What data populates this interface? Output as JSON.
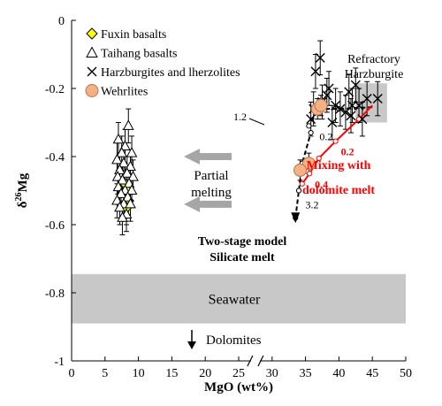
{
  "chart_data": {
    "type": "scatter",
    "title": "",
    "xlabel": "MgO (wt%)",
    "ylabel_main": "δ",
    "ylabel_sup": "26",
    "ylabel_tail": "Mg",
    "xlim": [
      0,
      50
    ],
    "ylim": [
      -1,
      0
    ],
    "x_axis_break": 27.5,
    "grid": false,
    "x_ticks": [
      {
        "value": 0,
        "label": "0"
      },
      {
        "value": 5,
        "label": "5"
      },
      {
        "value": 10,
        "label": "10"
      },
      {
        "value": 15,
        "label": "15"
      },
      {
        "value": 20,
        "label": "20"
      },
      {
        "value": 25,
        "label": "25"
      },
      {
        "value": 30,
        "label": "30"
      },
      {
        "value": 35,
        "label": "35"
      },
      {
        "value": 40,
        "label": "40"
      },
      {
        "value": 45,
        "label": "45"
      },
      {
        "value": 50,
        "label": "50"
      }
    ],
    "y_ticks": [
      {
        "value": 0,
        "label": "0"
      },
      {
        "value": -0.2,
        "label": "-0.2"
      },
      {
        "value": -0.4,
        "label": "-0.4"
      },
      {
        "value": -0.6,
        "label": "-0.6"
      },
      {
        "value": -0.8,
        "label": "-0.8"
      },
      {
        "value": -1,
        "label": "-1"
      }
    ],
    "legend": {
      "placement": "top-left",
      "entries": [
        {
          "name": "Fuxin basalts",
          "marker": "diamond",
          "color": "#ffff00"
        },
        {
          "name": "Taihang basalts",
          "marker": "triangle",
          "color": "#ffffff"
        },
        {
          "name": "Harzburgites and lherzolites",
          "marker": "cross",
          "color": "#000000"
        },
        {
          "name": "Wehrlites",
          "marker": "circle",
          "color": "#f4b183"
        }
      ]
    },
    "series": [
      {
        "name": "Fuxin basalts",
        "marker": "diamond",
        "points": [
          {
            "x": 8.0,
            "y": -0.48,
            "err": 0.05
          },
          {
            "x": 8.3,
            "y": -0.5,
            "err": 0.05
          },
          {
            "x": 8.5,
            "y": -0.53,
            "err": 0.05
          },
          {
            "x": 8.2,
            "y": -0.55,
            "err": 0.05
          }
        ]
      },
      {
        "name": "Taihang basalts",
        "marker": "triangle",
        "points": [
          {
            "x": 8.5,
            "y": -0.31,
            "err": 0.05
          },
          {
            "x": 7.0,
            "y": -0.35,
            "err": 0.05
          },
          {
            "x": 8.0,
            "y": -0.37,
            "err": 0.05
          },
          {
            "x": 7.5,
            "y": -0.39,
            "err": 0.05
          },
          {
            "x": 9.0,
            "y": -0.39,
            "err": 0.05
          },
          {
            "x": 6.8,
            "y": -0.41,
            "err": 0.05
          },
          {
            "x": 7.8,
            "y": -0.42,
            "err": 0.05
          },
          {
            "x": 8.8,
            "y": -0.43,
            "err": 0.05
          },
          {
            "x": 7.2,
            "y": -0.44,
            "err": 0.05
          },
          {
            "x": 8.3,
            "y": -0.45,
            "err": 0.05
          },
          {
            "x": 6.9,
            "y": -0.46,
            "err": 0.05
          },
          {
            "x": 9.2,
            "y": -0.46,
            "err": 0.05
          },
          {
            "x": 7.6,
            "y": -0.47,
            "err": 0.05
          },
          {
            "x": 8.6,
            "y": -0.48,
            "err": 0.05
          },
          {
            "x": 7.0,
            "y": -0.49,
            "err": 0.05
          },
          {
            "x": 8.0,
            "y": -0.5,
            "err": 0.05
          },
          {
            "x": 9.0,
            "y": -0.5,
            "err": 0.05
          },
          {
            "x": 7.4,
            "y": -0.51,
            "err": 0.05
          },
          {
            "x": 8.4,
            "y": -0.52,
            "err": 0.05
          },
          {
            "x": 6.8,
            "y": -0.53,
            "err": 0.05
          },
          {
            "x": 7.8,
            "y": -0.54,
            "err": 0.05
          },
          {
            "x": 8.8,
            "y": -0.54,
            "err": 0.05
          },
          {
            "x": 7.2,
            "y": -0.55,
            "err": 0.05
          },
          {
            "x": 8.2,
            "y": -0.57,
            "err": 0.05
          },
          {
            "x": 7.6,
            "y": -0.58,
            "err": 0.05
          }
        ]
      },
      {
        "name": "Harzburgites and lherzolites",
        "marker": "cross",
        "points": [
          {
            "x": 37.2,
            "y": -0.11,
            "err": 0.05
          },
          {
            "x": 36.5,
            "y": -0.15,
            "err": 0.05
          },
          {
            "x": 38.5,
            "y": -0.2,
            "err": 0.05
          },
          {
            "x": 38.2,
            "y": -0.22,
            "err": 0.05
          },
          {
            "x": 41.5,
            "y": -0.21,
            "err": 0.05
          },
          {
            "x": 42.5,
            "y": -0.19,
            "err": 0.05
          },
          {
            "x": 37.5,
            "y": -0.24,
            "err": 0.05
          },
          {
            "x": 39.5,
            "y": -0.25,
            "err": 0.05
          },
          {
            "x": 40.2,
            "y": -0.26,
            "err": 0.05
          },
          {
            "x": 41.0,
            "y": -0.27,
            "err": 0.05
          },
          {
            "x": 42.0,
            "y": -0.25,
            "err": 0.05
          },
          {
            "x": 43.0,
            "y": -0.25,
            "err": 0.05
          },
          {
            "x": 44.2,
            "y": -0.23,
            "err": 0.05
          },
          {
            "x": 45.8,
            "y": -0.23,
            "err": 0.05
          },
          {
            "x": 35.8,
            "y": -0.29,
            "err": 0.05
          },
          {
            "x": 36.2,
            "y": -0.26,
            "err": 0.05
          },
          {
            "x": 41.8,
            "y": -0.28,
            "err": 0.05
          },
          {
            "x": 39.0,
            "y": -0.3,
            "err": 0.05
          },
          {
            "x": 43.5,
            "y": -0.29,
            "err": 0.05
          }
        ]
      },
      {
        "name": "Wehrlites",
        "marker": "circle",
        "points": [
          {
            "x": 36.8,
            "y": -0.26,
            "err": 0.03
          },
          {
            "x": 37.3,
            "y": -0.25,
            "err": 0.03
          },
          {
            "x": 35.5,
            "y": -0.42,
            "err": 0.03
          },
          {
            "x": 34.2,
            "y": -0.44,
            "err": 0.03
          }
        ]
      }
    ],
    "models": [
      {
        "name": "Two-stage model Silicate melt",
        "color": "#000000",
        "points": [
          [
            45.0,
            -0.255
          ],
          [
            40.0,
            -0.26
          ],
          [
            37.0,
            -0.26
          ],
          [
            35.5,
            -0.31
          ],
          [
            35.8,
            -0.33
          ],
          [
            34.5,
            -0.42
          ],
          [
            34.0,
            -0.5
          ],
          [
            33.5,
            -0.58
          ]
        ],
        "tick_labels": [
          {
            "x": 36.3,
            "y": -0.31,
            "label": "0.2"
          },
          {
            "x": 34.2,
            "y": -0.51,
            "label": "3.2"
          }
        ],
        "side_label": "1.2"
      },
      {
        "name": "Mixing with dolomite melt",
        "color": "#ff0000",
        "points": [
          [
            45.0,
            -0.25
          ],
          [
            43.0,
            -0.29
          ],
          [
            39.5,
            -0.355
          ],
          [
            37.0,
            -0.405
          ],
          [
            35.6,
            -0.45
          ],
          [
            34.5,
            -0.48
          ]
        ],
        "tick_labels": [
          {
            "x": 39.5,
            "y": -0.355,
            "label": "0.2"
          },
          {
            "x": 35.6,
            "y": -0.45,
            "label": "0.4"
          }
        ]
      }
    ],
    "regions": [
      {
        "name": "Refractory Harzburgite",
        "label_line1": "Refractory",
        "label_line2": "Harzburgite",
        "xmin": 42.5,
        "xmax": 47.2,
        "ymin": -0.3,
        "ymax": -0.185
      },
      {
        "name": "Seawater",
        "label": "Seawater",
        "ymin": -0.89,
        "ymax": -0.745
      }
    ],
    "annotations": {
      "partial_melting_line1": "Partial",
      "partial_melting_line2": "melting",
      "two_stage_line1": "Two-stage model",
      "two_stage_line2": "Silicate melt",
      "mixing_line1": "Mixing with",
      "mixing_line2": "dolomite melt",
      "dolomites": "Dolomites"
    }
  }
}
